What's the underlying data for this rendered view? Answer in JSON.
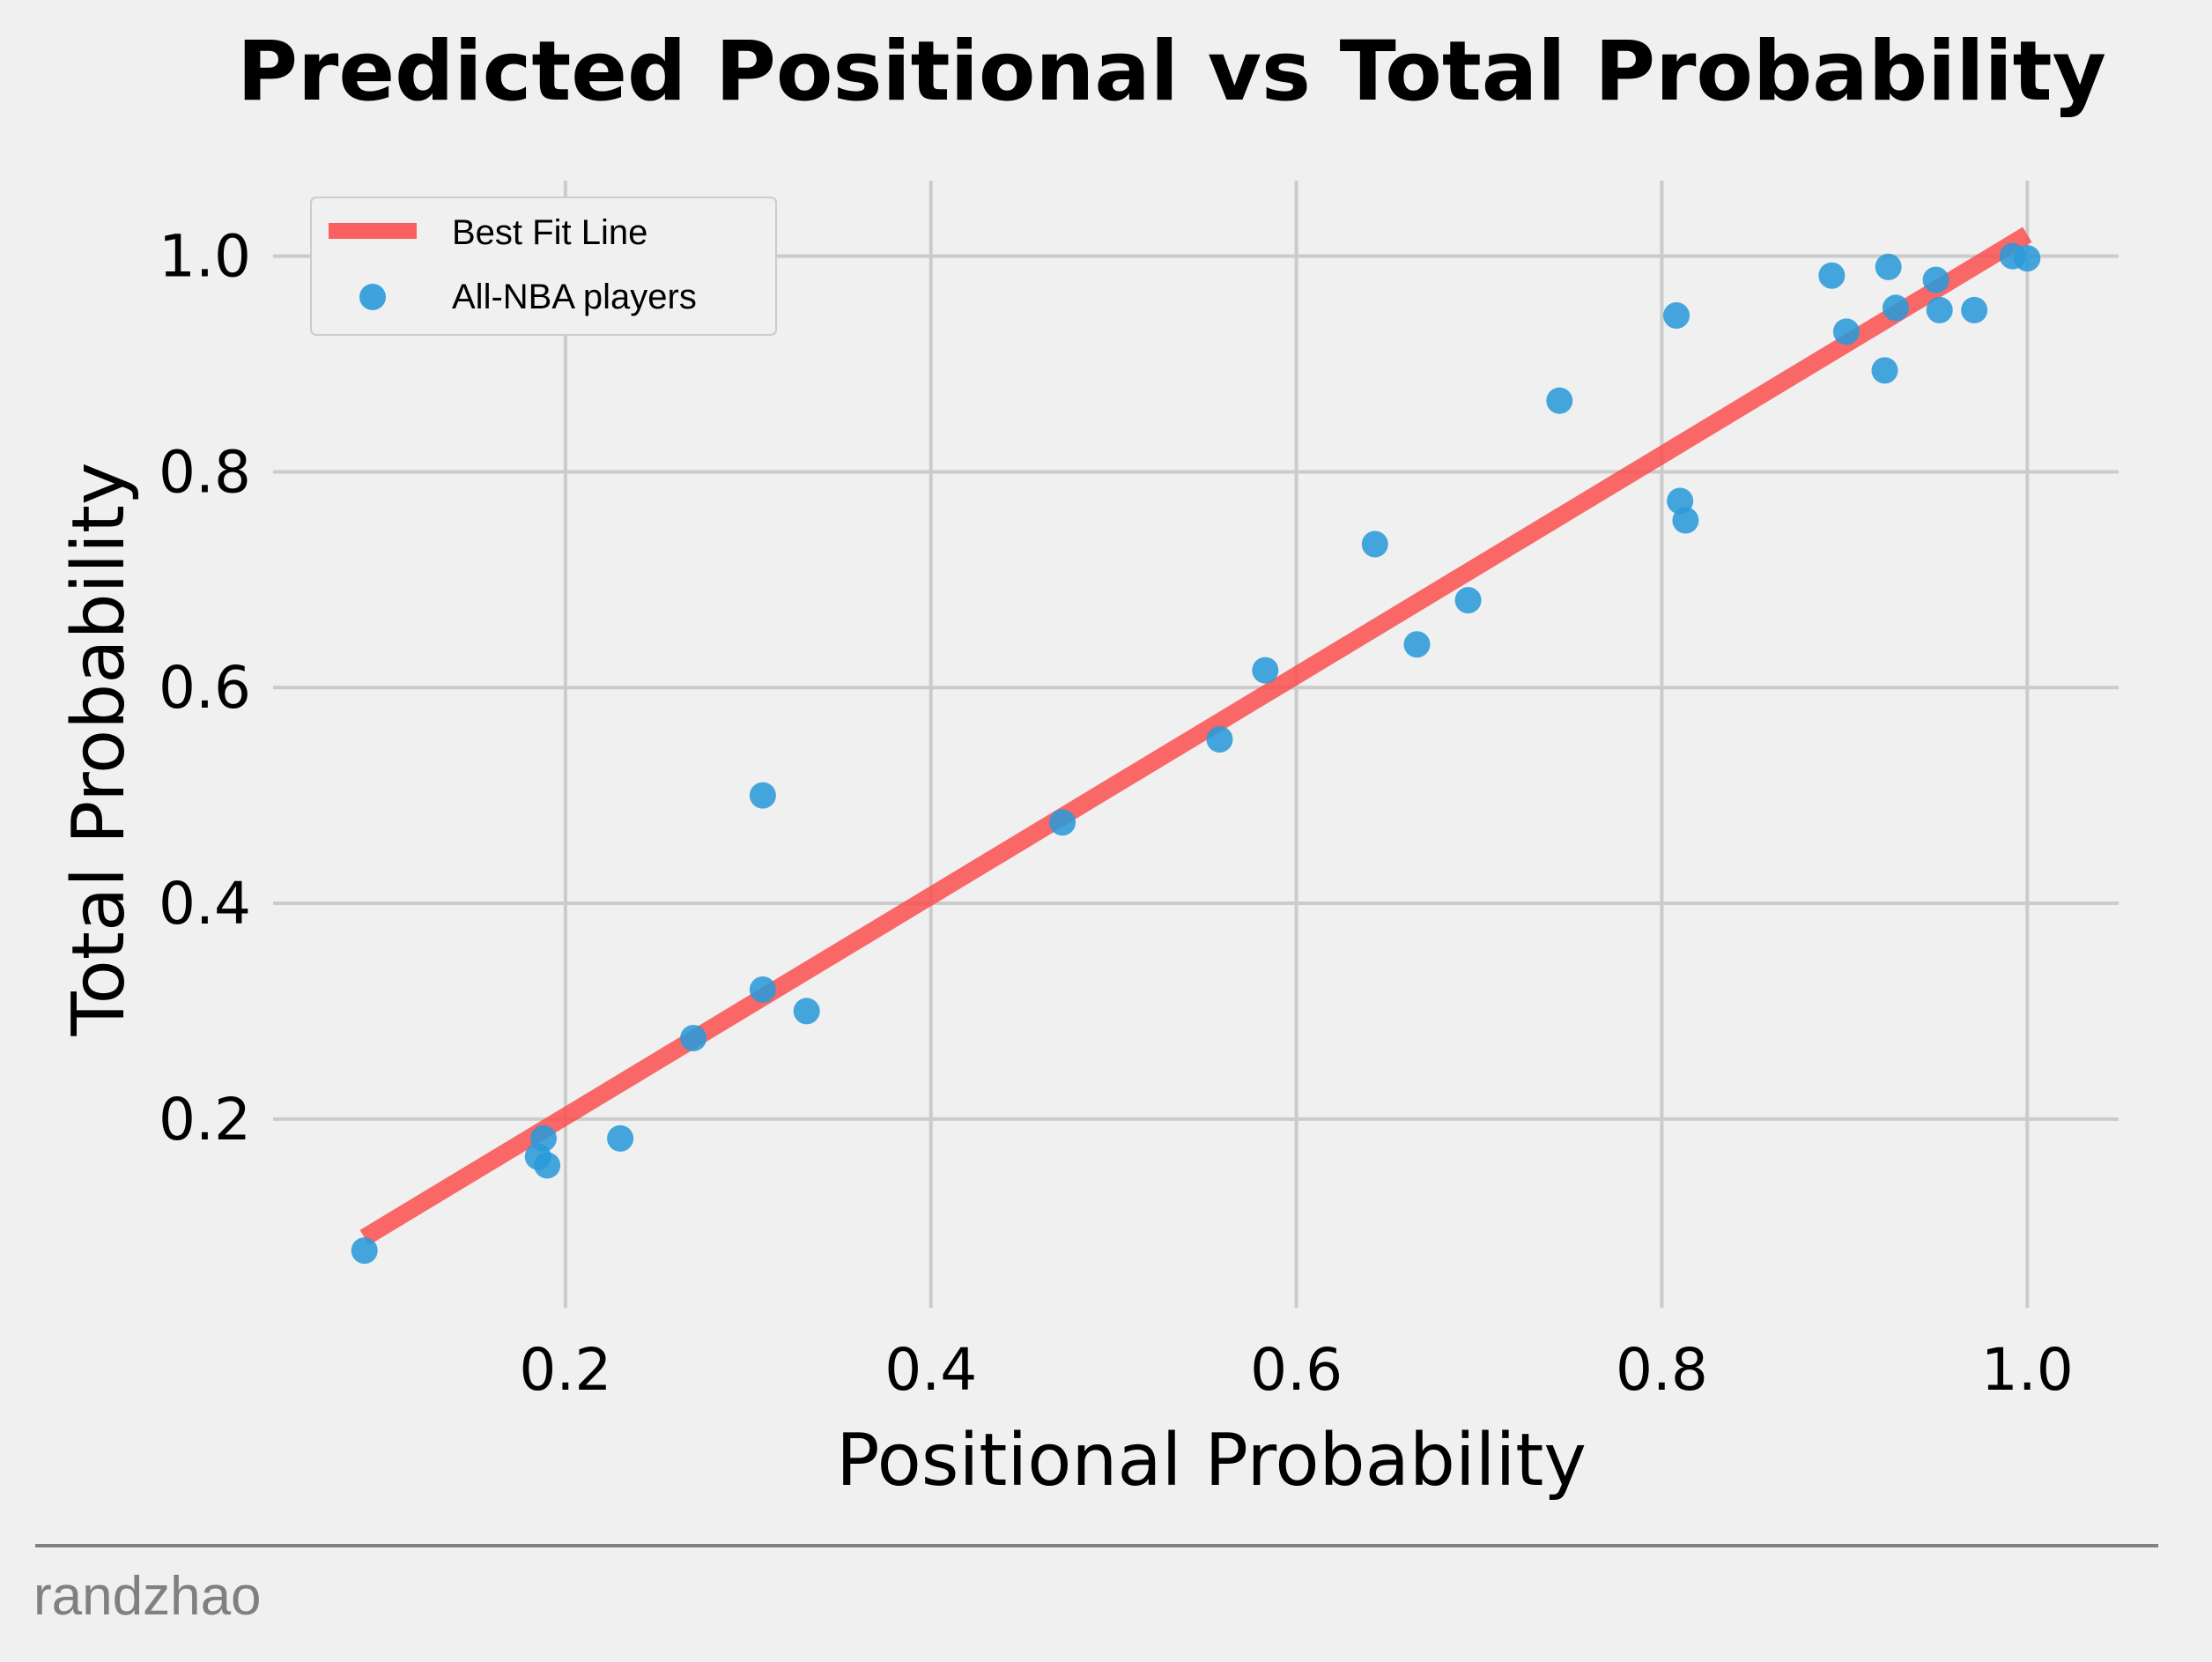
{
  "chart_data": {
    "type": "scatter",
    "title": "Predicted Positional vs Total Probability",
    "xlabel": "Positional Probability",
    "ylabel": "Total Probability",
    "xlim": [
      0.04,
      1.05
    ],
    "ylim": [
      0.025,
      1.07
    ],
    "xticks": [
      0.2,
      0.4,
      0.6,
      0.8,
      1.0
    ],
    "yticks": [
      0.2,
      0.4,
      0.6,
      0.8,
      1.0
    ],
    "xtick_labels": [
      "0.2",
      "0.4",
      "0.6",
      "0.8",
      "1.0"
    ],
    "ytick_labels": [
      "0.2",
      "0.4",
      "0.6",
      "0.8",
      "1.0"
    ],
    "grid": true,
    "legend_position": "top-left",
    "series": [
      {
        "name": "Best Fit Line",
        "kind": "line",
        "color": "#fc4f4f",
        "x": [
          0.09,
          1.0
        ],
        "y": [
          0.09,
          1.02
        ]
      },
      {
        "name": "All-NBA players",
        "kind": "scatter",
        "color": "#2a9ad8",
        "x": [
          0.09,
          0.185,
          0.188,
          0.19,
          0.23,
          0.27,
          0.308,
          0.308,
          0.332,
          0.472,
          0.558,
          0.583,
          0.643,
          0.666,
          0.694,
          0.744,
          0.808,
          0.81,
          0.813,
          0.893,
          0.901,
          0.922,
          0.924,
          0.928,
          0.95,
          0.952,
          0.971,
          0.992,
          1.0
        ],
        "y": [
          0.078,
          0.165,
          0.182,
          0.157,
          0.182,
          0.275,
          0.32,
          0.5,
          0.3,
          0.475,
          0.552,
          0.616,
          0.733,
          0.64,
          0.681,
          0.866,
          0.945,
          0.773,
          0.755,
          0.982,
          0.93,
          0.894,
          0.99,
          0.952,
          0.978,
          0.95,
          0.95,
          1.0,
          0.998
        ]
      }
    ]
  },
  "credit": "randzhao"
}
